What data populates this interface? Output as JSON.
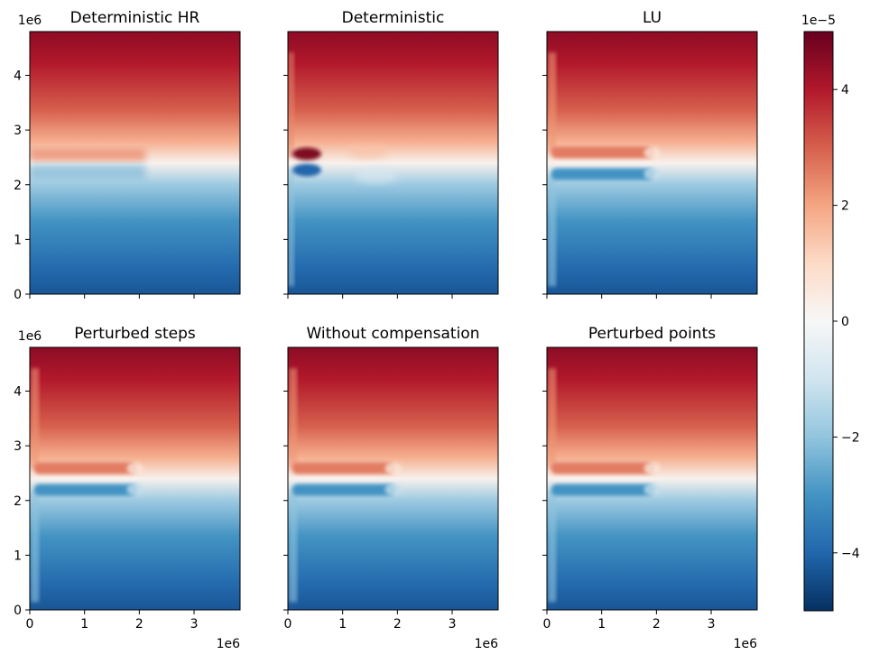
{
  "chart_data": {
    "type": "heatmap",
    "panels": [
      {
        "title": "Deterministic HR",
        "variant": "hr"
      },
      {
        "title": "Deterministic",
        "variant": "det"
      },
      {
        "title": "LU",
        "variant": "jet"
      },
      {
        "title": "Perturbed steps",
        "variant": "jet"
      },
      {
        "title": "Without compensation",
        "variant": "jet"
      },
      {
        "title": "Perturbed points",
        "variant": "jet"
      }
    ],
    "x_axis": {
      "ticks": [
        0,
        1,
        2,
        3
      ],
      "tick_labels": [
        "0",
        "1",
        "2",
        "3"
      ],
      "range": [
        0,
        3840000
      ],
      "offset_label": "1e6",
      "shown_on": "bottom row"
    },
    "y_axis": {
      "ticks": [
        0,
        1,
        2,
        3,
        4
      ],
      "tick_labels": [
        "0",
        "1",
        "2",
        "3",
        "4"
      ],
      "range": [
        0,
        4800000
      ],
      "offset_label": "1e6",
      "shown_on": "left column"
    },
    "colorbar": {
      "range": [
        -5,
        5
      ],
      "ticks": [
        -4,
        -2,
        0,
        2,
        4
      ],
      "tick_labels": [
        "−4",
        "−2",
        "0",
        "2",
        "4"
      ],
      "offset_label": "1e−5",
      "colormap": "RdBu_r",
      "colormap_stops": [
        "#053061",
        "#2166ac",
        "#4393c3",
        "#92c5de",
        "#d1e5f0",
        "#f7f7f7",
        "#fddbc7",
        "#f4a582",
        "#d6604d",
        "#b2182b",
        "#67001f"
      ]
    },
    "field_description": "zonal jet field: positive (red) north of y = 2.4e6, negative (blue) south, strongest near the northern and southern boundaries, with a jet/vortex along the western boundary near y = 2.4e6",
    "grid": false
  }
}
